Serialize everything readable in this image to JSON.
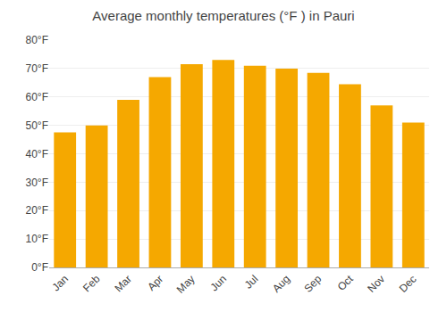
{
  "chart_data": {
    "type": "bar",
    "title": "Average monthly temperatures (°F ) in Pauri",
    "categories": [
      "Jan",
      "Feb",
      "Mar",
      "Apr",
      "May",
      "Jun",
      "Jul",
      "Aug",
      "Sep",
      "Oct",
      "Nov",
      "Dec"
    ],
    "values": [
      47.5,
      50.0,
      59.0,
      67.0,
      71.5,
      73.0,
      71.0,
      70.0,
      68.5,
      64.5,
      57.0,
      51.0
    ],
    "color": "#F5A800",
    "ylim": [
      0,
      80
    ],
    "yticks": [
      {
        "value": 0,
        "label": "0°F"
      },
      {
        "value": 10,
        "label": "10°F"
      },
      {
        "value": 20,
        "label": "20°F"
      },
      {
        "value": 30,
        "label": "30°F"
      },
      {
        "value": 40,
        "label": "40°F"
      },
      {
        "value": 50,
        "label": "50°F"
      },
      {
        "value": 60,
        "label": "60°F"
      },
      {
        "value": 70,
        "label": "70°F"
      },
      {
        "value": 80,
        "label": "80°F"
      }
    ],
    "grid": true
  }
}
